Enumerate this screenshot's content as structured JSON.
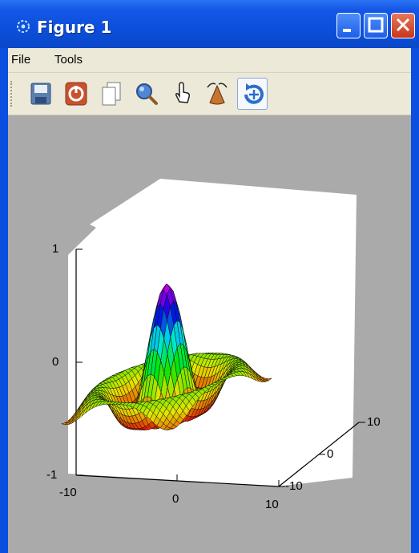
{
  "window": {
    "title": "Figure 1",
    "colors": {
      "titlebar": "#0c4fdc",
      "menubar": "#ece9d8",
      "canvas": "#aaaaaa",
      "close": "#d4492c"
    }
  },
  "menu": {
    "items": [
      "File",
      "Tools"
    ]
  },
  "toolbar": {
    "tools": [
      {
        "icon": "save-icon"
      },
      {
        "icon": "stop-icon"
      },
      {
        "icon": "copy-icon"
      },
      {
        "icon": "zoom-icon"
      },
      {
        "icon": "pan-hand-icon"
      },
      {
        "icon": "orient-cone-icon"
      },
      {
        "icon": "rotate-icon",
        "active": true
      }
    ]
  },
  "chart_data": {
    "type": "surface",
    "function": "sin(r)/r, r = sqrt(x^2 + y^2)",
    "colormap": "hsv",
    "title": "",
    "z_ticks": [
      "1",
      "0",
      "-1"
    ],
    "x_ticks": [
      "-10",
      "0",
      "10"
    ],
    "y_ticks": [
      "-10",
      "0",
      "10"
    ],
    "xlim": [
      -10,
      10
    ],
    "ylim": [
      -10,
      10
    ],
    "zlim": [
      -1,
      1
    ],
    "grid": false
  }
}
